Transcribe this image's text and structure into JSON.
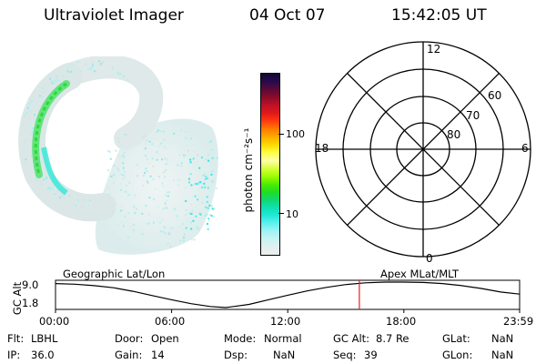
{
  "header": {
    "instrument": "Ultraviolet Imager",
    "date": "04 Oct 07",
    "time": "15:42:05 UT"
  },
  "colorbar": {
    "unit_label": "photon cm⁻²s⁻¹",
    "tick_labels": [
      "100",
      "10"
    ],
    "colors": [
      "#0b0b33",
      "#2a0a4a",
      "#5a0a3a",
      "#8b0c28",
      "#c0102a",
      "#e01818",
      "#ff3a10",
      "#ff7a00",
      "#ffaa00",
      "#ffd800",
      "#ffff40",
      "#ffffa8",
      "#d8ff40",
      "#a0ff00",
      "#50ee00",
      "#20dd20",
      "#10d870",
      "#10e0b0",
      "#20e8d8",
      "#60f0f0",
      "#a0f4f4",
      "#c8f4f4",
      "#e0f0ee",
      "#eeeeee"
    ]
  },
  "polar_plot": {
    "labels": {
      "mlt_top": "12",
      "mlt_left": "18",
      "mlt_right": "6",
      "mlt_bottom": "0",
      "lat_60": "60",
      "lat_70": "70",
      "lat_80": "80"
    }
  },
  "timeline": {
    "left_title": "Geographic Lat/Lon",
    "right_title": "Apex  MLat/MLT",
    "ylabel": "GC Alt",
    "y_ticks": [
      "9.0",
      "1.8"
    ],
    "x_ticks": [
      "00:00",
      "06:00",
      "12:00",
      "18:00",
      "23:59"
    ],
    "current_time_marker": "15:42",
    "marker_color": "#e02020"
  },
  "chart_data": {
    "type": "line",
    "title": "",
    "xlabel": "",
    "ylabel": "GC Alt",
    "x": [
      0,
      1,
      2,
      3,
      4,
      5,
      6,
      7,
      8,
      8.8,
      10,
      11,
      12,
      13,
      14,
      15,
      16,
      17,
      18,
      19,
      20,
      21,
      22,
      23,
      23.98
    ],
    "y": [
      8.6,
      8.4,
      8.0,
      7.4,
      6.4,
      5.2,
      4.0,
      2.9,
      2.1,
      1.8,
      2.7,
      4.0,
      5.3,
      6.5,
      7.5,
      8.3,
      8.8,
      9.0,
      9.0,
      8.9,
      8.6,
      8.0,
      7.2,
      6.2,
      5.6
    ],
    "xlim": [
      0,
      23.98
    ],
    "ylim": [
      1.8,
      9.0
    ]
  },
  "info": {
    "flt_label": "Flt:",
    "flt_value": "LBHL",
    "ip_label": "IP:",
    "ip_value": "36.0",
    "door_label": "Door:",
    "door_value": "Open",
    "gain_label": "Gain:",
    "gain_value": "14",
    "mode_label": "Mode:",
    "mode_value": "Normal",
    "dsp_label": "Dsp:",
    "dsp_value": "NaN",
    "gcalt_label": "GC Alt:",
    "gcalt_value": "8.7 Re",
    "seq_label": "Seq:",
    "seq_value": "39",
    "glat_label": "GLat:",
    "glat_value": "NaN",
    "glon_label": "GLon:",
    "glon_value": "NaN"
  }
}
